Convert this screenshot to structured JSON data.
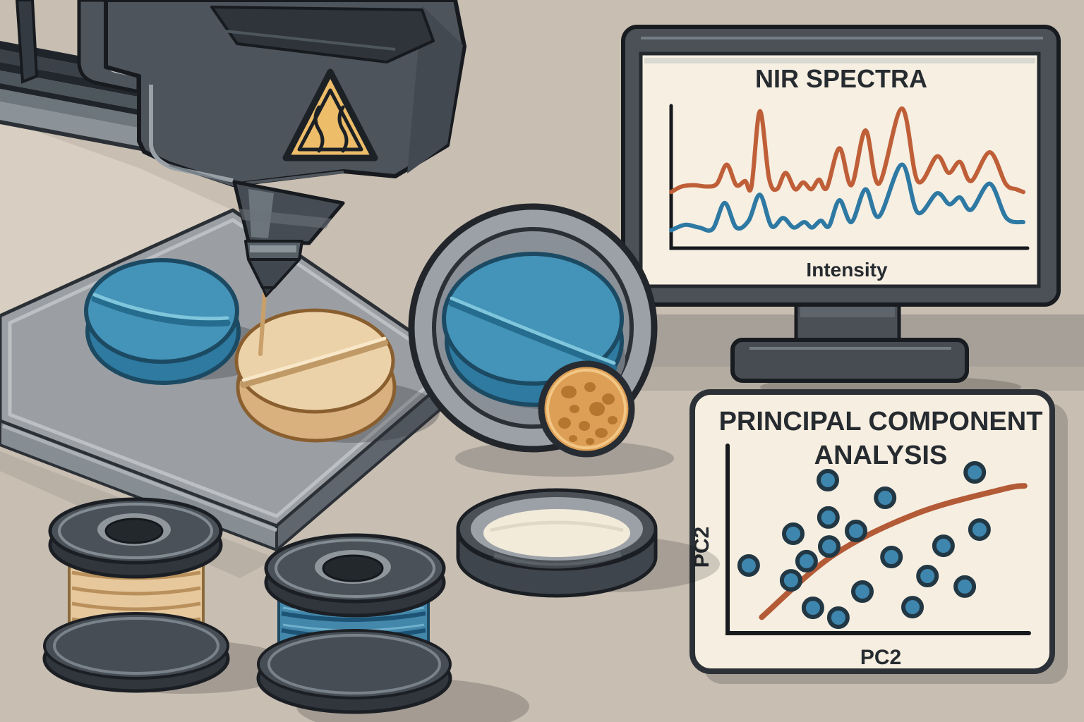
{
  "monitor_chart": {
    "title": "NIR SPECTRA",
    "caption": "Intensity"
  },
  "pca_panel": {
    "title_line1": "PRINCIPAL COMPONENT",
    "title_line2": "ANALYSIS",
    "y_axis_label": "PC2",
    "x_axis_label": "PC2"
  },
  "icons": {
    "hot_surface_warning": "yellow warning triangle with heat waves on printer head"
  },
  "palette": {
    "background": "#c8beb2",
    "wall_band": "#a7a098",
    "machine_gray": "#4d545b",
    "machine_dark": "#2e343a",
    "outline": "#171a1e",
    "plate_top": "#9b9fa3",
    "warning_yellow": "#edbd69",
    "tablet_blue": "#4493b8",
    "tablet_tan": "#ecd2a8",
    "filament_tan": "#e6c89c",
    "filament_blue": "#4387ab",
    "screen_cream": "#f6efe2",
    "panel_cream": "#f6eee0",
    "spectra_red": "#bf5f38",
    "spectra_blue": "#2e79a3",
    "scatter_blue": "#3e86ae",
    "trend_orange": "#b35a36"
  },
  "chart_data": [
    {
      "type": "line",
      "title": "NIR SPECTRA",
      "xlabel": "Intensity",
      "ylabel": "",
      "grid": false,
      "legend_position": "none",
      "axis_ranges": {
        "x": [
          0,
          1
        ],
        "y": [
          0,
          1
        ]
      },
      "series": [
        {
          "name": "spectrum-red",
          "color": "#bf5f38",
          "points": [
            [
              0.0,
              0.38
            ],
            [
              0.03,
              0.42
            ],
            [
              0.065,
              0.43
            ],
            [
              0.1,
              0.42
            ],
            [
              0.13,
              0.44
            ],
            [
              0.158,
              0.58
            ],
            [
              0.185,
              0.43
            ],
            [
              0.21,
              0.46
            ],
            [
              0.228,
              0.42
            ],
            [
              0.252,
              0.97
            ],
            [
              0.278,
              0.48
            ],
            [
              0.3,
              0.4
            ],
            [
              0.325,
              0.52
            ],
            [
              0.352,
              0.4
            ],
            [
              0.375,
              0.45
            ],
            [
              0.398,
              0.4
            ],
            [
              0.42,
              0.47
            ],
            [
              0.442,
              0.41
            ],
            [
              0.478,
              0.7
            ],
            [
              0.512,
              0.43
            ],
            [
              0.552,
              0.83
            ],
            [
              0.59,
              0.44
            ],
            [
              0.655,
              0.99
            ],
            [
              0.7,
              0.46
            ],
            [
              0.755,
              0.64
            ],
            [
              0.788,
              0.52
            ],
            [
              0.82,
              0.6
            ],
            [
              0.852,
              0.46
            ],
            [
              0.905,
              0.67
            ],
            [
              0.95,
              0.44
            ],
            [
              0.98,
              0.4
            ],
            [
              1.0,
              0.38
            ]
          ]
        },
        {
          "name": "spectrum-blue",
          "color": "#2e79a3",
          "points": [
            [
              0.0,
              0.1
            ],
            [
              0.04,
              0.14
            ],
            [
              0.08,
              0.12
            ],
            [
              0.118,
              0.11
            ],
            [
              0.152,
              0.3
            ],
            [
              0.185,
              0.12
            ],
            [
              0.22,
              0.17
            ],
            [
              0.252,
              0.36
            ],
            [
              0.285,
              0.13
            ],
            [
              0.318,
              0.19
            ],
            [
              0.348,
              0.12
            ],
            [
              0.378,
              0.16
            ],
            [
              0.4,
              0.12
            ],
            [
              0.425,
              0.17
            ],
            [
              0.448,
              0.13
            ],
            [
              0.478,
              0.32
            ],
            [
              0.512,
              0.16
            ],
            [
              0.552,
              0.4
            ],
            [
              0.59,
              0.2
            ],
            [
              0.655,
              0.58
            ],
            [
              0.7,
              0.23
            ],
            [
              0.755,
              0.37
            ],
            [
              0.79,
              0.29
            ],
            [
              0.82,
              0.34
            ],
            [
              0.852,
              0.25
            ],
            [
              0.905,
              0.44
            ],
            [
              0.952,
              0.19
            ],
            [
              1.0,
              0.16
            ]
          ]
        }
      ]
    },
    {
      "type": "scatter",
      "title": "PRINCIPAL COMPONENT ANALYSIS",
      "xlabel": "PC2",
      "ylabel": "PC2",
      "grid": false,
      "point_color": "#3e86ae",
      "point_outline": "#223744",
      "axis_ranges": {
        "x": [
          0,
          1
        ],
        "y": [
          0,
          1
        ]
      },
      "points": [
        [
          0.319,
          0.853
        ],
        [
          0.526,
          0.751
        ],
        [
          0.85,
          0.898
        ],
        [
          0.321,
          0.637
        ],
        [
          0.194,
          0.543
        ],
        [
          0.421,
          0.559
        ],
        [
          0.324,
          0.469
        ],
        [
          0.242,
          0.384
        ],
        [
          0.033,
          0.359
        ],
        [
          0.186,
          0.273
        ],
        [
          0.549,
          0.408
        ],
        [
          0.737,
          0.473
        ],
        [
          0.867,
          0.567
        ],
        [
          0.679,
          0.298
        ],
        [
          0.814,
          0.237
        ],
        [
          0.444,
          0.208
        ],
        [
          0.625,
          0.118
        ],
        [
          0.265,
          0.114
        ],
        [
          0.357,
          0.057
        ]
      ],
      "trend_line": {
        "color": "#b35a36",
        "points": [
          [
            0.08,
            0.06
          ],
          [
            0.34,
            0.42
          ],
          [
            0.64,
            0.66
          ],
          [
            0.95,
            0.8
          ],
          [
            1.03,
            0.82
          ]
        ]
      }
    }
  ]
}
